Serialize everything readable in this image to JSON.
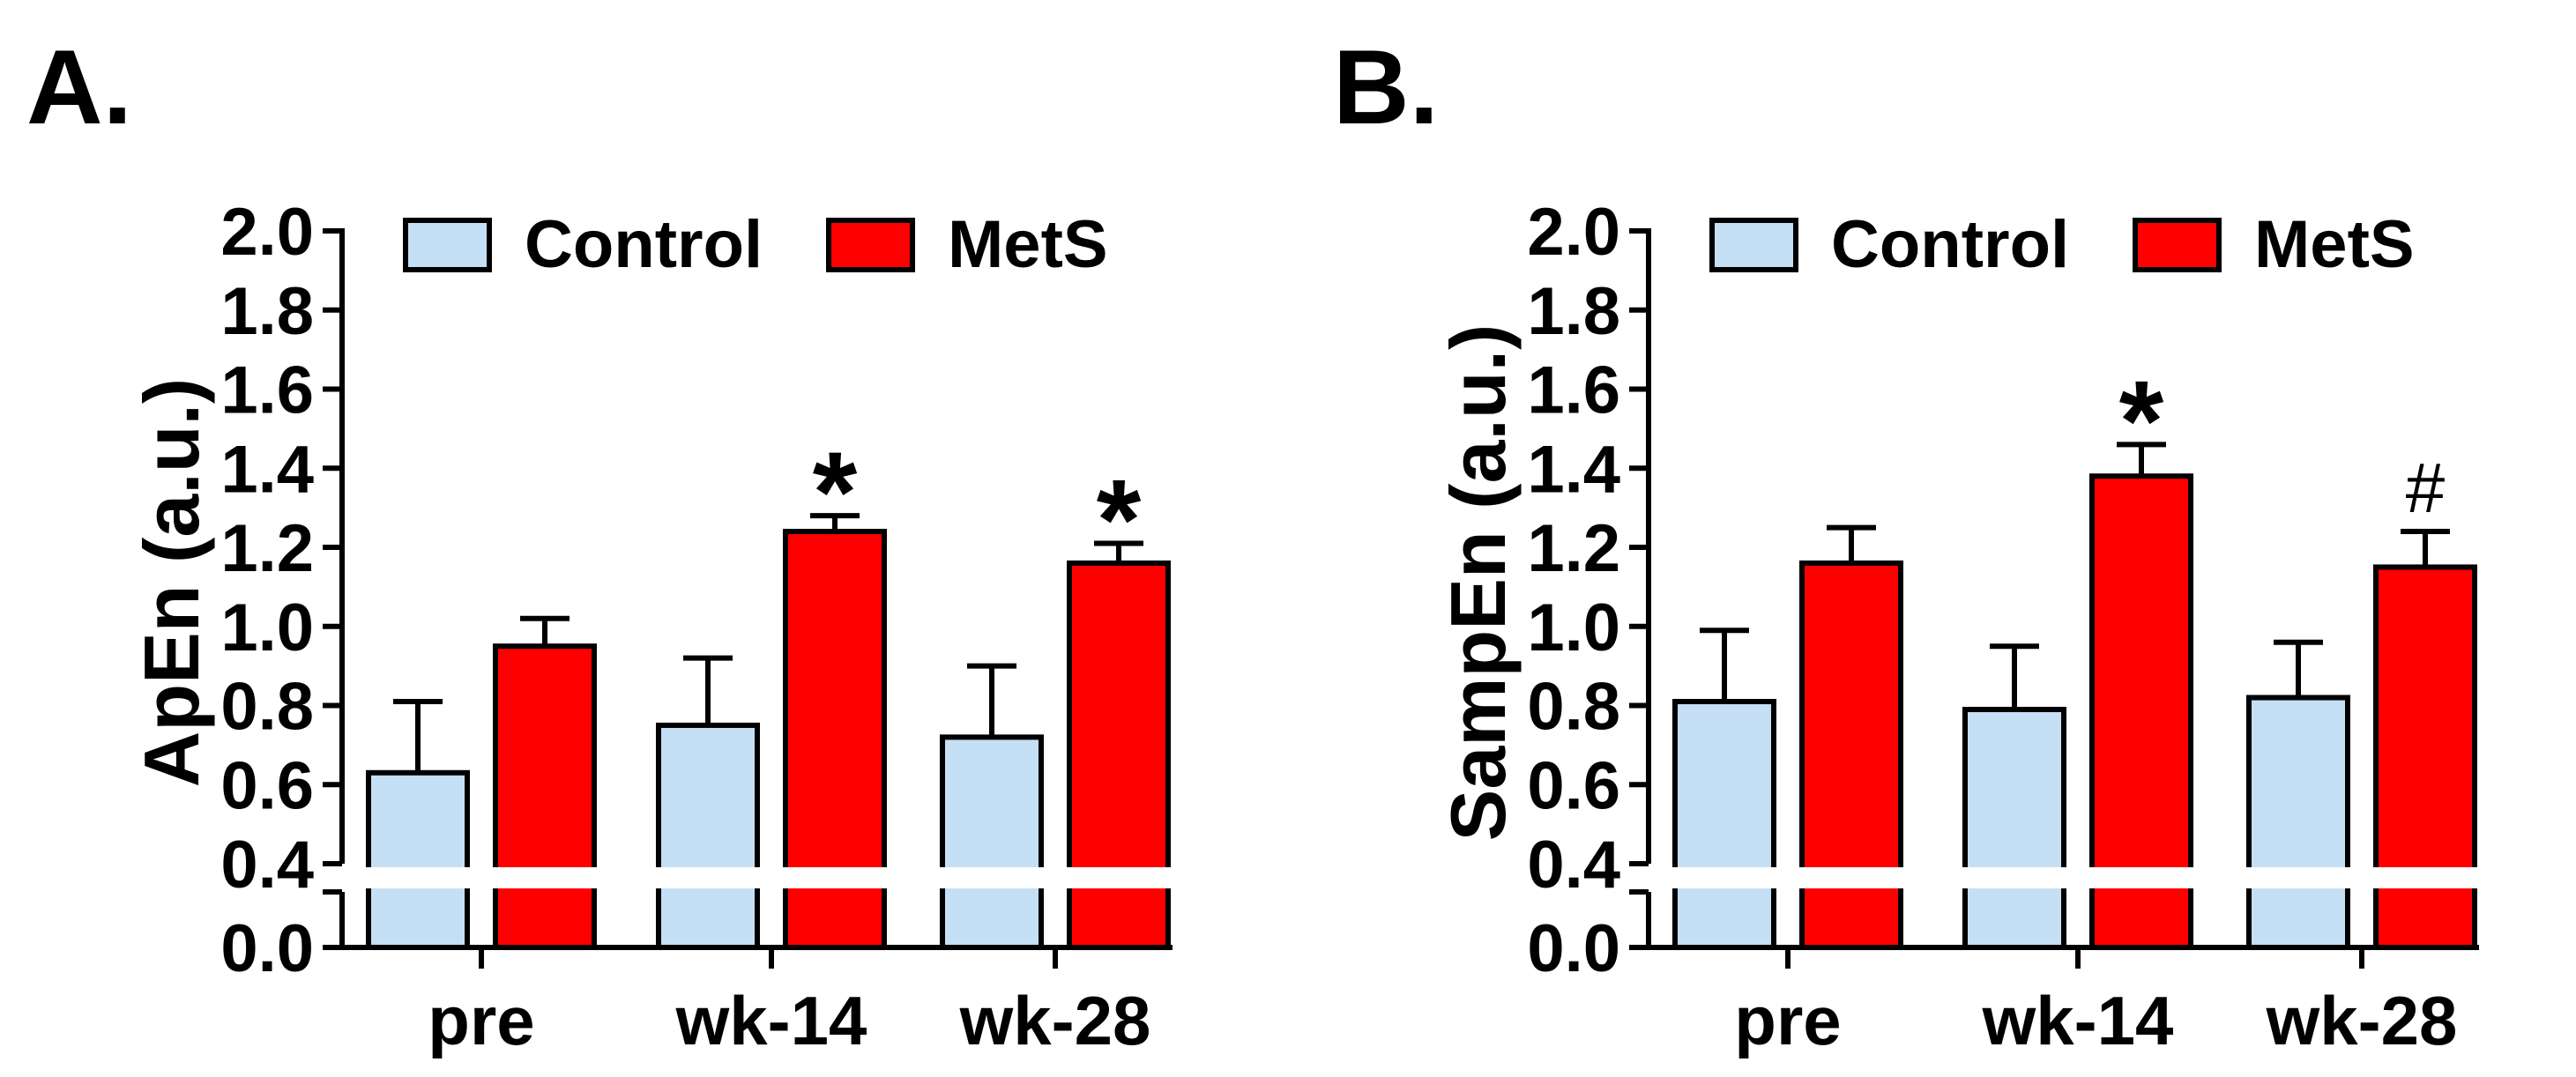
{
  "colors": {
    "control": "#c5dff5",
    "mets": "#ff0000",
    "axis": "#000000",
    "background": "#ffffff"
  },
  "chart_data": [
    {
      "type": "bar",
      "panel_label": "A.",
      "ylabel": "ApEn (a.u.)",
      "xlabel": "",
      "categories": [
        "pre",
        "wk-14",
        "wk-28"
      ],
      "ylim": [
        0,
        2.0
      ],
      "axis_break": [
        0,
        0.4
      ],
      "yticks": [
        0.0,
        0.4,
        0.6,
        0.8,
        1.0,
        1.2,
        1.4,
        1.6,
        1.8,
        2.0
      ],
      "ytick_labels": [
        "0.0",
        "0.4",
        "0.6",
        "0.8",
        "1.0",
        "1.2",
        "1.4",
        "1.6",
        "1.8",
        "2.0"
      ],
      "legend": {
        "placement": "top",
        "entries": [
          "Control",
          "MetS"
        ]
      },
      "series": [
        {
          "name": "Control",
          "values": [
            0.63,
            0.75,
            0.72
          ],
          "error": [
            0.18,
            0.17,
            0.18
          ],
          "annotations": [
            "",
            "",
            ""
          ]
        },
        {
          "name": "MetS",
          "values": [
            0.95,
            1.24,
            1.16
          ],
          "error": [
            0.07,
            0.04,
            0.05
          ],
          "annotations": [
            "",
            "*",
            "*"
          ]
        }
      ]
    },
    {
      "type": "bar",
      "panel_label": "B.",
      "ylabel": "SampEn (a.u.)",
      "xlabel": "",
      "categories": [
        "pre",
        "wk-14",
        "wk-28"
      ],
      "ylim": [
        0,
        2.0
      ],
      "axis_break": [
        0,
        0.4
      ],
      "yticks": [
        0.0,
        0.4,
        0.6,
        0.8,
        1.0,
        1.2,
        1.4,
        1.6,
        1.8,
        2.0
      ],
      "ytick_labels": [
        "0.0",
        "0.4",
        "0.6",
        "0.8",
        "1.0",
        "1.2",
        "1.4",
        "1.6",
        "1.8",
        "2.0"
      ],
      "legend": {
        "placement": "top",
        "entries": [
          "Control",
          "MetS"
        ]
      },
      "series": [
        {
          "name": "Control",
          "values": [
            0.81,
            0.79,
            0.82
          ],
          "error": [
            0.18,
            0.16,
            0.14
          ],
          "annotations": [
            "",
            "",
            ""
          ]
        },
        {
          "name": "MetS",
          "values": [
            1.16,
            1.38,
            1.15
          ],
          "error": [
            0.09,
            0.08,
            0.09
          ],
          "annotations": [
            "",
            "*",
            "#"
          ]
        }
      ]
    }
  ]
}
